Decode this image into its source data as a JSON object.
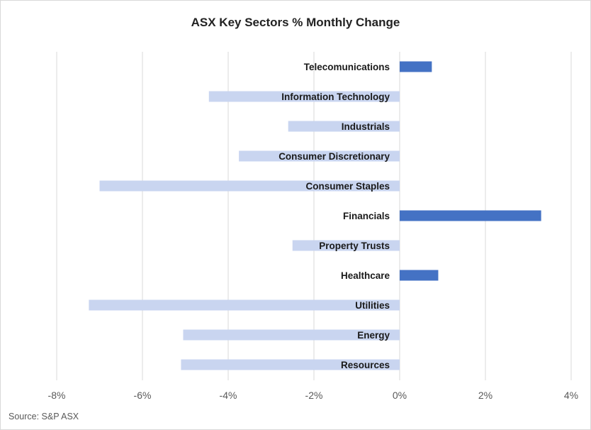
{
  "chart_data": {
    "type": "bar",
    "orientation": "horizontal",
    "title": "ASX Key Sectors % Monthly Change",
    "categories": [
      "Telecomunications",
      "Information Technology",
      "Industrials",
      "Consumer Discretionary",
      "Consumer Staples",
      "Financials",
      "Property Trusts",
      "Healthcare",
      "Utilities",
      "Energy",
      "Resources"
    ],
    "values": [
      0.75,
      -4.45,
      -2.6,
      -3.75,
      -7.0,
      3.3,
      -2.5,
      0.9,
      -7.25,
      -5.05,
      -5.1
    ],
    "xlim": [
      -8,
      4
    ],
    "xticks": [
      -8,
      -6,
      -4,
      -2,
      0,
      2,
      4
    ],
    "xtick_labels": [
      "-8%",
      "-6%",
      "-4%",
      "-2%",
      "0%",
      "2%",
      "4%"
    ],
    "grid": true,
    "colors": {
      "positive": "#4472c4",
      "negative": "#c9d5f0",
      "grid": "#d9d9d9",
      "text": "#1a1a1a"
    }
  },
  "source": "Source: S&P ASX"
}
